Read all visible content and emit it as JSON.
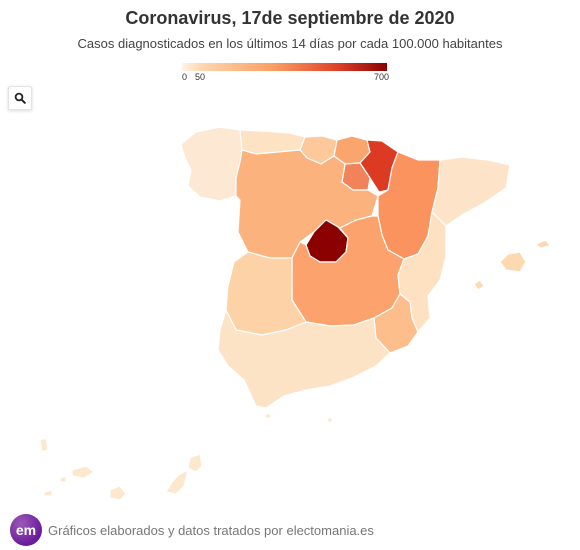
{
  "title": "Coronavirus, 17de septiembre de 2020",
  "subtitle": "Casos diagnosticados en los últimos 14 días por cada 100.000 habitantes",
  "legend": {
    "min_label": "0",
    "mid_label": "50",
    "max_label": "700"
  },
  "zoom_icon": "search-icon",
  "footer": {
    "logo_text": "em",
    "credit": "Gráficos elaborados y datos tratados por electomania.es"
  },
  "regions": [
    {
      "name": "Galicia",
      "color": "#fde9d3"
    },
    {
      "name": "Asturias",
      "color": "#fde2c4"
    },
    {
      "name": "Cantabria",
      "color": "#fdc99a"
    },
    {
      "name": "País Vasco",
      "color": "#fba56e"
    },
    {
      "name": "Navarra",
      "color": "#dc3a22"
    },
    {
      "name": "La Rioja",
      "color": "#f2825a"
    },
    {
      "name": "Castilla y León",
      "color": "#fbb27c"
    },
    {
      "name": "Aragón",
      "color": "#fa935e"
    },
    {
      "name": "Cataluña",
      "color": "#fde4c8"
    },
    {
      "name": "Madrid",
      "color": "#8b0000"
    },
    {
      "name": "Castilla-La Mancha",
      "color": "#fca26c"
    },
    {
      "name": "Extremadura",
      "color": "#fdd2a6"
    },
    {
      "name": "Comunidad Valenciana",
      "color": "#fde1c0"
    },
    {
      "name": "Murcia",
      "color": "#fdbe8c"
    },
    {
      "name": "Andalucía",
      "color": "#fde3c6"
    },
    {
      "name": "Baleares",
      "color": "#fdd9b2"
    },
    {
      "name": "Canarias",
      "color": "#fde7cd"
    },
    {
      "name": "Ceuta",
      "color": "#fde7cd"
    },
    {
      "name": "Melilla",
      "color": "#fde7cd"
    }
  ]
}
